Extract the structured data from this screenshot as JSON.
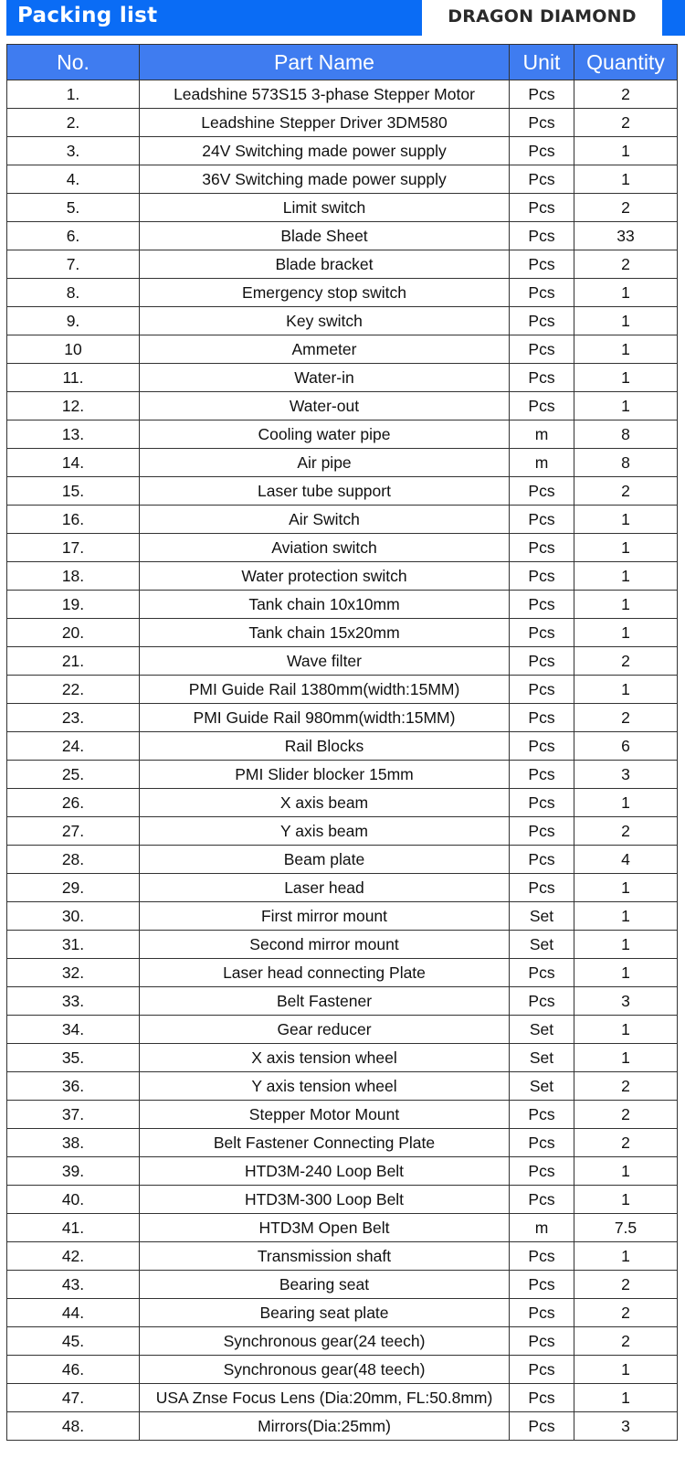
{
  "header": {
    "title": "Packing list",
    "brand": "DRAGON DIAMOND"
  },
  "colors": {
    "bar": "#0a6cf5",
    "table_header": "#3f7cf0"
  },
  "table": {
    "columns": [
      "No.",
      "Part Name",
      "Unit",
      "Quantity"
    ],
    "rows": [
      [
        "1.",
        "Leadshine 573S15 3-phase Stepper Motor",
        "Pcs",
        "2"
      ],
      [
        "2.",
        "Leadshine Stepper Driver 3DM580",
        "Pcs",
        "2"
      ],
      [
        "3.",
        "24V Switching made power supply",
        "Pcs",
        "1"
      ],
      [
        "4.",
        "36V Switching made power supply",
        "Pcs",
        "1"
      ],
      [
        "5.",
        "Limit switch",
        "Pcs",
        "2"
      ],
      [
        "6.",
        "Blade Sheet",
        "Pcs",
        "33"
      ],
      [
        "7.",
        "Blade bracket",
        "Pcs",
        "2"
      ],
      [
        "8.",
        "Emergency stop switch",
        "Pcs",
        "1"
      ],
      [
        "9.",
        "Key switch",
        "Pcs",
        "1"
      ],
      [
        "10",
        "Ammeter",
        "Pcs",
        "1"
      ],
      [
        "11.",
        "Water-in",
        "Pcs",
        "1"
      ],
      [
        "12.",
        "Water-out",
        "Pcs",
        "1"
      ],
      [
        "13.",
        "Cooling water pipe",
        "m",
        "8"
      ],
      [
        "14.",
        "Air pipe",
        "m",
        "8"
      ],
      [
        "15.",
        "Laser tube support",
        "Pcs",
        "2"
      ],
      [
        "16.",
        "Air Switch",
        "Pcs",
        "1"
      ],
      [
        "17.",
        "Aviation switch",
        "Pcs",
        "1"
      ],
      [
        "18.",
        "Water protection switch",
        "Pcs",
        "1"
      ],
      [
        "19.",
        "Tank chain 10x10mm",
        "Pcs",
        "1"
      ],
      [
        "20.",
        "Tank chain 15x20mm",
        "Pcs",
        "1"
      ],
      [
        "21.",
        "Wave filter",
        "Pcs",
        "2"
      ],
      [
        "22.",
        "PMI Guide Rail 1380mm(width:15MM)",
        "Pcs",
        "1"
      ],
      [
        "23.",
        "PMI Guide Rail 980mm(width:15MM)",
        "Pcs",
        "2"
      ],
      [
        "24.",
        "Rail Blocks",
        "Pcs",
        "6"
      ],
      [
        "25.",
        "PMI  Slider blocker 15mm",
        "Pcs",
        "3"
      ],
      [
        "26.",
        "X axis beam",
        "Pcs",
        "1"
      ],
      [
        "27.",
        "Y axis beam",
        "Pcs",
        "2"
      ],
      [
        "28.",
        "Beam plate",
        "Pcs",
        "4"
      ],
      [
        "29.",
        "Laser head",
        "Pcs",
        "1"
      ],
      [
        "30.",
        "First mirror mount",
        "Set",
        "1"
      ],
      [
        "31.",
        "Second mirror mount",
        "Set",
        "1"
      ],
      [
        "32.",
        "Laser head connecting Plate",
        "Pcs",
        "1"
      ],
      [
        "33.",
        "Belt Fastener",
        "Pcs",
        "3"
      ],
      [
        "34.",
        "Gear reducer",
        "Set",
        "1"
      ],
      [
        "35.",
        "X axis tension wheel",
        "Set",
        "1"
      ],
      [
        "36.",
        "Y axis tension wheel",
        "Set",
        "2"
      ],
      [
        "37.",
        "Stepper Motor Mount",
        "Pcs",
        "2"
      ],
      [
        "38.",
        "Belt Fastener Connecting Plate",
        "Pcs",
        "2"
      ],
      [
        "39.",
        "HTD3M-240 Loop Belt",
        "Pcs",
        "1"
      ],
      [
        "40.",
        "HTD3M-300 Loop Belt",
        "Pcs",
        "1"
      ],
      [
        "41.",
        "HTD3M Open Belt",
        "m",
        "7.5"
      ],
      [
        "42.",
        "Transmission shaft",
        "Pcs",
        "1"
      ],
      [
        "43.",
        "Bearing seat",
        "Pcs",
        "2"
      ],
      [
        "44.",
        "Bearing seat plate",
        "Pcs",
        "2"
      ],
      [
        "45.",
        "Synchronous gear(24 teech)",
        "Pcs",
        "2"
      ],
      [
        "46.",
        "Synchronous gear(48 teech)",
        "Pcs",
        "1"
      ],
      [
        "47.",
        "USA Znse Focus Lens (Dia:20mm, FL:50.8mm)",
        "Pcs",
        "1"
      ],
      [
        "48.",
        "Mirrors(Dia:25mm)",
        "Pcs",
        "3"
      ]
    ]
  }
}
